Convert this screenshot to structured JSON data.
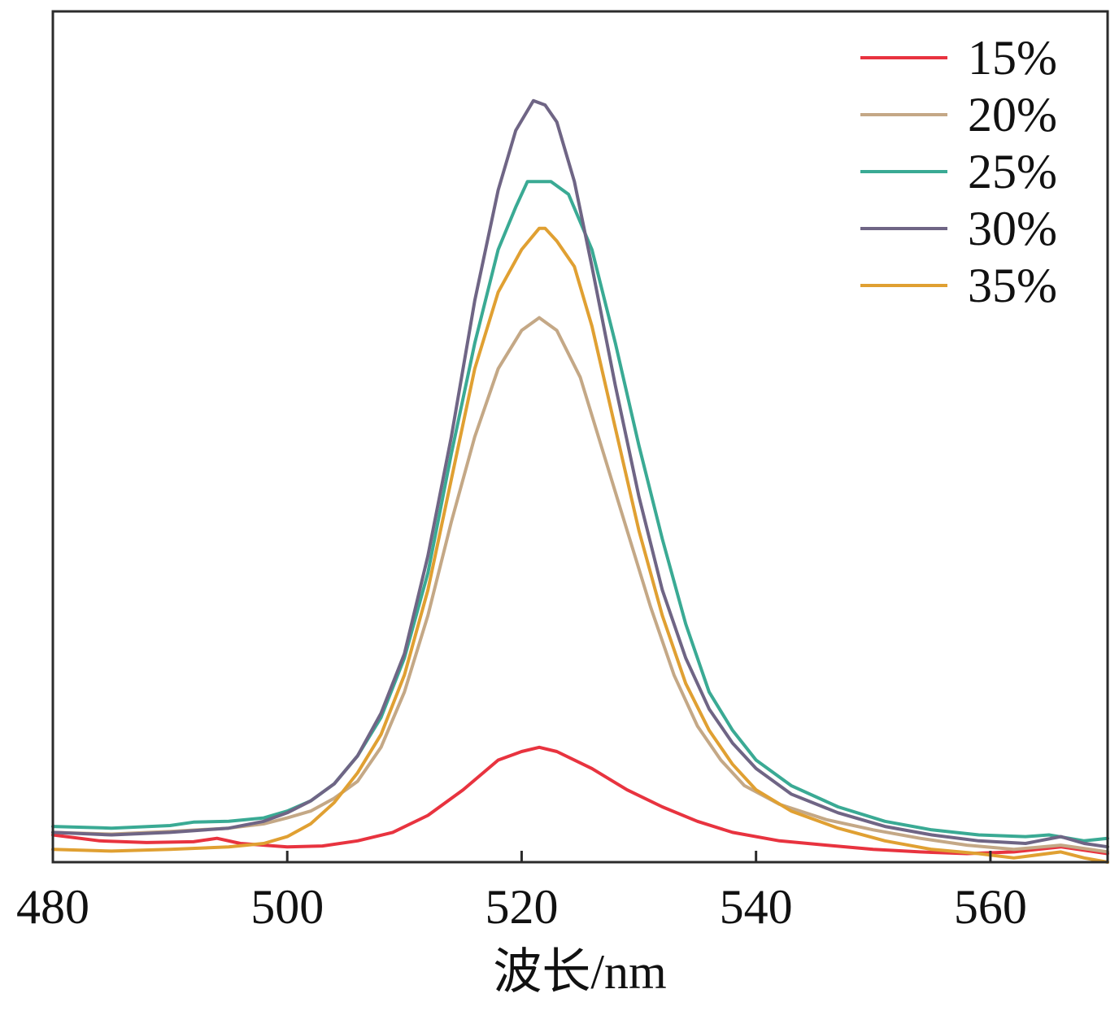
{
  "chart_data": {
    "type": "line",
    "title": "",
    "xlabel": "波长/nm",
    "ylabel": "",
    "xlim": [
      480,
      570
    ],
    "ylim": [
      0,
      1.0
    ],
    "x_ticks": [
      "480",
      "500",
      "520",
      "540",
      "560"
    ],
    "y_ticks": [],
    "grid": false,
    "legend_position": "top-right",
    "series": [
      {
        "name": "15%",
        "color": "#e8333f",
        "x": [
          480,
          484,
          488,
          492,
          494,
          496,
          500,
          503,
          506,
          509,
          512,
          515,
          518,
          520,
          521.5,
          523,
          526,
          529,
          532,
          535,
          538,
          542,
          546,
          550,
          554,
          558,
          562,
          566,
          570
        ],
        "y": [
          0.032,
          0.025,
          0.023,
          0.024,
          0.028,
          0.022,
          0.018,
          0.019,
          0.025,
          0.035,
          0.055,
          0.085,
          0.12,
          0.13,
          0.135,
          0.13,
          0.11,
          0.085,
          0.065,
          0.048,
          0.035,
          0.025,
          0.02,
          0.015,
          0.012,
          0.01,
          0.012,
          0.018,
          0.01
        ]
      },
      {
        "name": "20%",
        "color": "#c4a886",
        "x": [
          480,
          485,
          490,
          495,
          498,
          500,
          502,
          504,
          506,
          508,
          510,
          512,
          514,
          516,
          518,
          520,
          521.5,
          523,
          525,
          527,
          529,
          531,
          533,
          535,
          537,
          539,
          542,
          546,
          550,
          554,
          558,
          562,
          566,
          570
        ],
        "y": [
          0.035,
          0.033,
          0.036,
          0.04,
          0.045,
          0.052,
          0.06,
          0.075,
          0.095,
          0.135,
          0.2,
          0.29,
          0.4,
          0.5,
          0.58,
          0.625,
          0.64,
          0.625,
          0.57,
          0.48,
          0.39,
          0.3,
          0.22,
          0.16,
          0.12,
          0.09,
          0.068,
          0.05,
          0.038,
          0.028,
          0.02,
          0.015,
          0.02,
          0.012
        ]
      },
      {
        "name": "25%",
        "color": "#3aaa94",
        "x": [
          480,
          485,
          490,
          492,
          495,
          498,
          500,
          502,
          504,
          506,
          508,
          510,
          512,
          514,
          516,
          518,
          519.5,
          520.5,
          521.5,
          522.5,
          524,
          526,
          528,
          530,
          532,
          534,
          536,
          538,
          540,
          543,
          547,
          551,
          555,
          559,
          563,
          565,
          568,
          570
        ],
        "y": [
          0.042,
          0.04,
          0.043,
          0.047,
          0.048,
          0.052,
          0.06,
          0.072,
          0.092,
          0.125,
          0.17,
          0.24,
          0.34,
          0.48,
          0.61,
          0.72,
          0.77,
          0.8,
          0.8,
          0.8,
          0.785,
          0.72,
          0.61,
          0.49,
          0.38,
          0.28,
          0.2,
          0.155,
          0.12,
          0.09,
          0.065,
          0.048,
          0.038,
          0.032,
          0.03,
          0.032,
          0.025,
          0.028
        ]
      },
      {
        "name": "30%",
        "color": "#6f6585",
        "x": [
          480,
          485,
          490,
          495,
          498,
          500,
          502,
          504,
          506,
          508,
          510,
          512,
          514,
          516,
          518,
          519.5,
          521,
          522,
          523,
          524.5,
          526,
          528,
          530,
          532,
          534,
          536,
          538,
          540,
          543,
          547,
          551,
          555,
          559,
          563,
          566,
          568,
          570
        ],
        "y": [
          0.035,
          0.032,
          0.035,
          0.04,
          0.048,
          0.058,
          0.072,
          0.092,
          0.125,
          0.175,
          0.245,
          0.36,
          0.5,
          0.66,
          0.79,
          0.86,
          0.895,
          0.89,
          0.87,
          0.8,
          0.7,
          0.56,
          0.43,
          0.32,
          0.24,
          0.18,
          0.14,
          0.11,
          0.08,
          0.058,
          0.042,
          0.032,
          0.025,
          0.022,
          0.03,
          0.022,
          0.018
        ]
      },
      {
        "name": "35%",
        "color": "#e0a032",
        "x": [
          480,
          485,
          490,
          495,
          498,
          500,
          502,
          504,
          506,
          508,
          510,
          512,
          514,
          516,
          518,
          520,
          521.5,
          522,
          523,
          524.5,
          526,
          528,
          530,
          532,
          534,
          536,
          538,
          540,
          543,
          547,
          551,
          555,
          559,
          562,
          566,
          568,
          570
        ],
        "y": [
          0.015,
          0.013,
          0.015,
          0.018,
          0.022,
          0.03,
          0.045,
          0.07,
          0.105,
          0.15,
          0.22,
          0.32,
          0.45,
          0.58,
          0.67,
          0.72,
          0.745,
          0.745,
          0.73,
          0.7,
          0.63,
          0.51,
          0.39,
          0.29,
          0.21,
          0.155,
          0.115,
          0.085,
          0.06,
          0.04,
          0.025,
          0.015,
          0.01,
          0.005,
          0.012,
          0.005,
          0.0
        ]
      }
    ]
  }
}
